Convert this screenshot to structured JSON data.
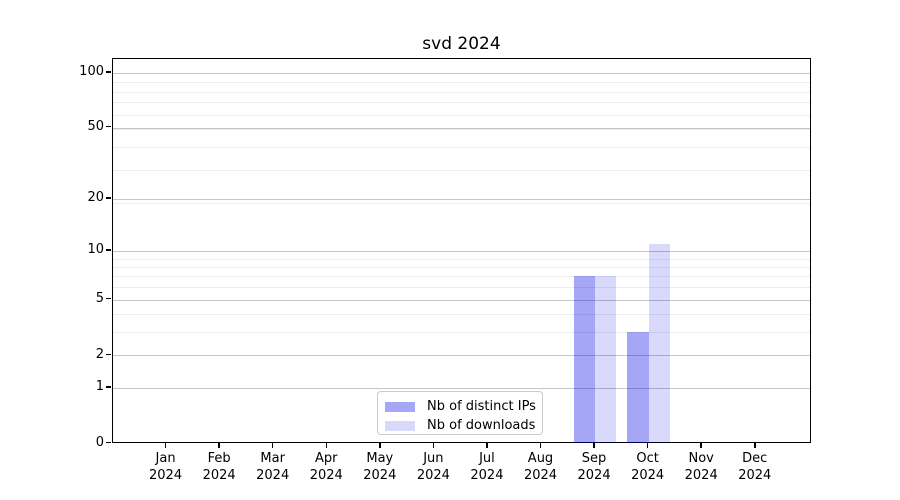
{
  "chart_data": {
    "type": "bar",
    "title": "svd 2024",
    "categories": [
      "Jan 2024",
      "Feb 2024",
      "Mar 2024",
      "Apr 2024",
      "May 2024",
      "Jun 2024",
      "Jul 2024",
      "Aug 2024",
      "Sep 2024",
      "Oct 2024",
      "Nov 2024",
      "Dec 2024"
    ],
    "series": [
      {
        "name": "Nb of distinct IPs",
        "color": "rgba(0,0,230,0.35)",
        "values": [
          0,
          0,
          0,
          0,
          0,
          0,
          0,
          0,
          7,
          3,
          0,
          0
        ]
      },
      {
        "name": "Nb of downloads",
        "color": "rgba(0,0,230,0.15)",
        "values": [
          0,
          0,
          0,
          0,
          0,
          0,
          0,
          0,
          7,
          11,
          0,
          0
        ]
      }
    ],
    "xlabel": "",
    "ylabel": "",
    "yscale": "log1p",
    "yticks": [
      0,
      1,
      2,
      5,
      10,
      20,
      50,
      100
    ],
    "yticks_minor": [
      3,
      4,
      6,
      7,
      8,
      9,
      19,
      29,
      39,
      49,
      59,
      69,
      79,
      89
    ],
    "ylim": [
      0,
      119
    ],
    "grid": true,
    "legend_position": "lower center"
  }
}
